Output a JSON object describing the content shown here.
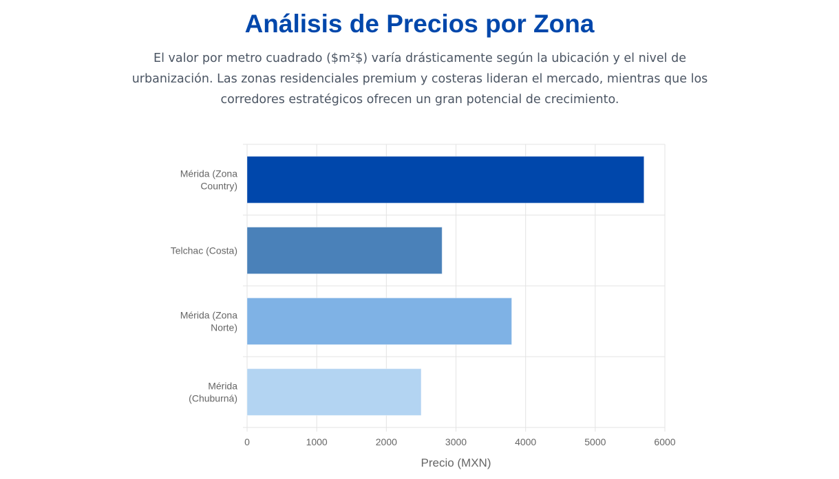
{
  "header": {
    "title": "Análisis de Precios por Zona",
    "description": "El valor por metro cuadrado ($m²$) varía drásticamente según la ubicación y el nivel de urbanización. Las zonas residenciales premium y costeras lideran el mercado, mientras que los corredores estratégicos ofrecen un gran potencial de crecimiento."
  },
  "chart_data": {
    "type": "bar",
    "orientation": "horizontal",
    "categories": [
      [
        "Mérida (Zona",
        "Country)"
      ],
      [
        "Telchac (Costa)"
      ],
      [
        "Mérida (Zona",
        "Norte)"
      ],
      [
        "Mérida",
        "(Chuburná)"
      ]
    ],
    "values": [
      5700,
      2800,
      3800,
      2500
    ],
    "colors": [
      "#0047ab",
      "#4a81b9",
      "#7fb2e5",
      "#b3d4f2"
    ],
    "xlabel": "Precio (MXN)",
    "ylabel": "",
    "xlim": [
      0,
      6000
    ],
    "xticks": [
      "0",
      "1000",
      "2000",
      "3000",
      "4000",
      "5000",
      "6000"
    ],
    "grid": true,
    "legend": "none"
  }
}
